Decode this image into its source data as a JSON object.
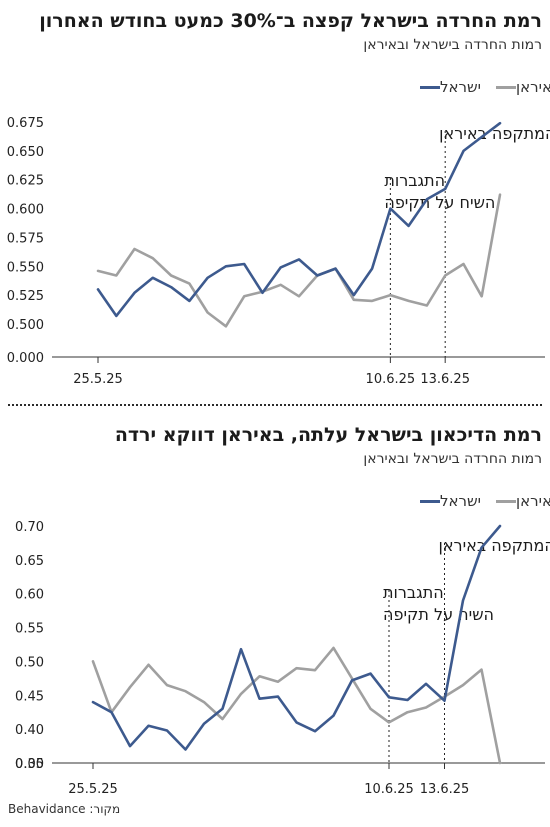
{
  "source_text": "מקור: Behavidance",
  "chart_data": [
    {
      "type": "line",
      "title": "רמת החרדה בישראל קפצה ב־30% כמעט בחודש האחרון",
      "subtitle": "רמות החרדה בישראל ובאיראן",
      "xlabel": "",
      "ylabel": "",
      "x_ticks": [
        {
          "index": 0,
          "label": "25.5.25"
        },
        {
          "index": 16,
          "label": "10.6.25"
        },
        {
          "index": 19,
          "label": "13.6.25"
        }
      ],
      "y_ticks": [
        "0.000",
        "0.500",
        "0.525",
        "0.550",
        "0.575",
        "0.600",
        "0.625",
        "0.650",
        "0.675"
      ],
      "y_break": true,
      "ylim": [
        0.5,
        0.675
      ],
      "grid": false,
      "legend_position": "top",
      "annotations": [
        {
          "index": 16,
          "lines": [
            "התגברות",
            "השיח על תקיפה"
          ]
        },
        {
          "index": 19,
          "lines": [
            "המתקפה באיראן"
          ]
        }
      ],
      "series": [
        {
          "name": "ישראל",
          "color": "#3d5a8e",
          "values": [
            0.53,
            0.507,
            0.527,
            0.54,
            0.532,
            0.52,
            0.54,
            0.55,
            0.552,
            0.527,
            0.549,
            0.556,
            0.542,
            0.548,
            0.525,
            0.548,
            0.6,
            0.585,
            0.608,
            0.617,
            0.65,
            0.662,
            0.674
          ]
        },
        {
          "name": "איראן",
          "color": "#a0a0a0",
          "values": [
            0.546,
            0.542,
            0.565,
            0.557,
            0.542,
            0.535,
            0.51,
            0.498,
            0.524,
            0.528,
            0.534,
            0.524,
            0.542,
            0.548,
            0.521,
            0.52,
            0.525,
            0.52,
            0.516,
            0.542,
            0.552,
            0.524,
            0.612
          ]
        }
      ]
    },
    {
      "type": "line",
      "title": "רמת הדיכאון בישראל עלתה, באיראן דווקא ירדה",
      "subtitle": "רמות החרדה בישראל ובאיראן",
      "xlabel": "",
      "ylabel": "",
      "x_ticks": [
        {
          "index": 0,
          "label": "25.5.25"
        },
        {
          "index": 16,
          "label": "10.6.25"
        },
        {
          "index": 19,
          "label": "13.6.25"
        }
      ],
      "y_ticks": [
        "0.00",
        "0.35",
        "0.40",
        "0.45",
        "0.50",
        "0.55",
        "0.60",
        "0.65",
        "0.70"
      ],
      "y_break": true,
      "ylim": [
        0.35,
        0.7
      ],
      "grid": false,
      "legend_position": "top",
      "annotations": [
        {
          "index": 16,
          "lines": [
            "התגברות",
            "השיח על תקיפה"
          ]
        },
        {
          "index": 19,
          "lines": [
            "המתקפה באיראן"
          ]
        }
      ],
      "series": [
        {
          "name": "ישראל",
          "color": "#3d5a8e",
          "values": [
            0.44,
            0.425,
            0.375,
            0.405,
            0.398,
            0.37,
            0.408,
            0.43,
            0.518,
            0.445,
            0.448,
            0.41,
            0.397,
            0.42,
            0.472,
            0.482,
            0.447,
            0.443,
            0.467,
            0.442,
            0.59,
            0.668,
            0.7
          ]
        },
        {
          "name": "איראן",
          "color": "#a0a0a0",
          "values": [
            0.5,
            0.425,
            0.462,
            0.495,
            0.465,
            0.456,
            0.44,
            0.415,
            0.452,
            0.478,
            0.47,
            0.49,
            0.487,
            0.52,
            0.475,
            0.43,
            0.41,
            0.425,
            0.432,
            0.448,
            0.465,
            0.488,
            0.35
          ]
        }
      ]
    }
  ]
}
